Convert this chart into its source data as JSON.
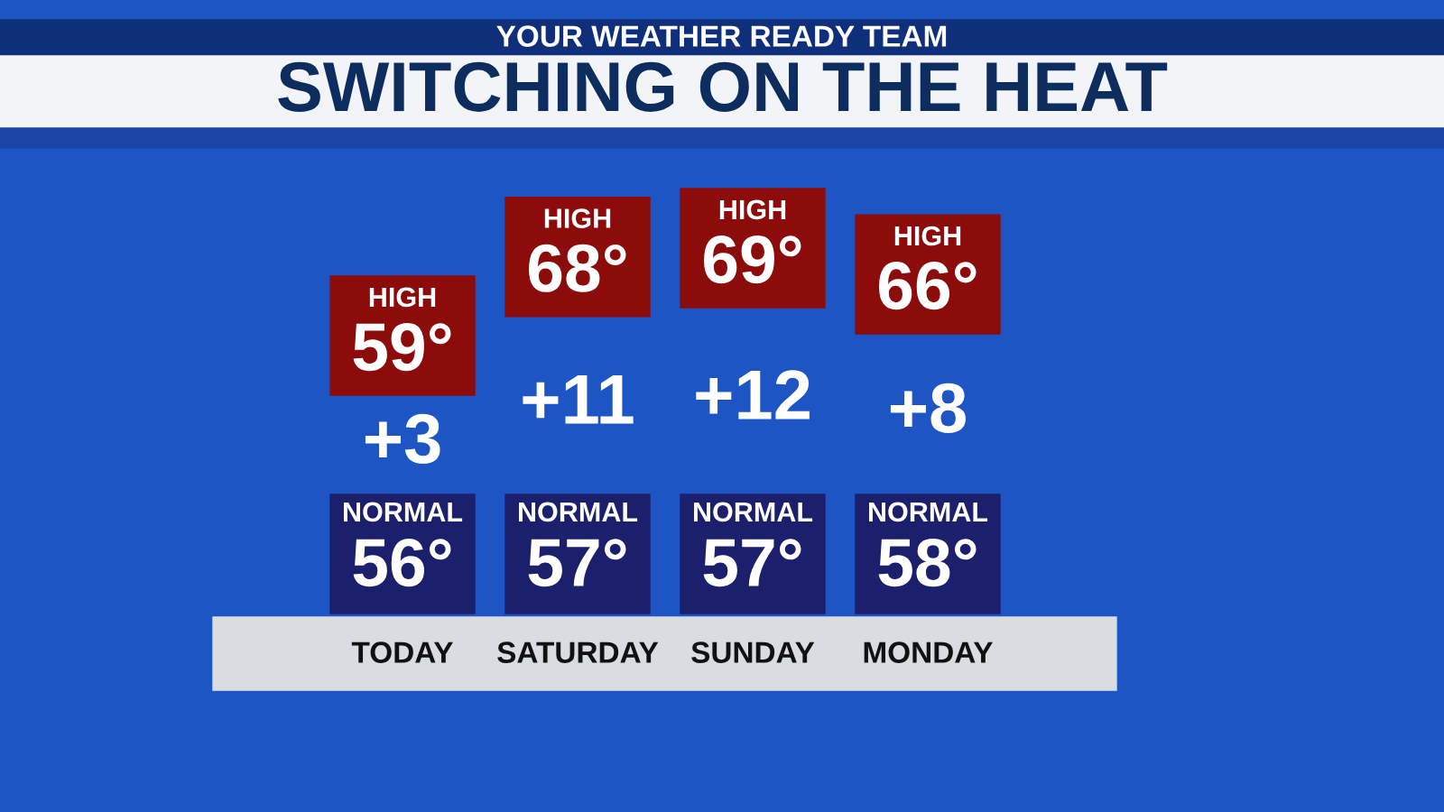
{
  "chart_data": {
    "type": "other",
    "title": "SWITCHING ON THE HEAT",
    "subtitle": "YOUR WEATHER READY TEAM",
    "categories": [
      "TODAY",
      "SATURDAY",
      "SUNDAY",
      "MONDAY"
    ],
    "series": [
      {
        "name": "HIGH",
        "color": "#8c0b0b",
        "values": [
          59,
          68,
          69,
          66
        ],
        "value_labels": [
          "59°",
          "68°",
          "69°",
          "66°"
        ]
      },
      {
        "name": "NORMAL",
        "color": "#1c1f6b",
        "values": [
          56,
          57,
          57,
          58
        ],
        "value_labels": [
          "56°",
          "57°",
          "57°",
          "58°"
        ]
      }
    ],
    "annotations": [
      "+3",
      "+11",
      "+12",
      "+8"
    ]
  }
}
